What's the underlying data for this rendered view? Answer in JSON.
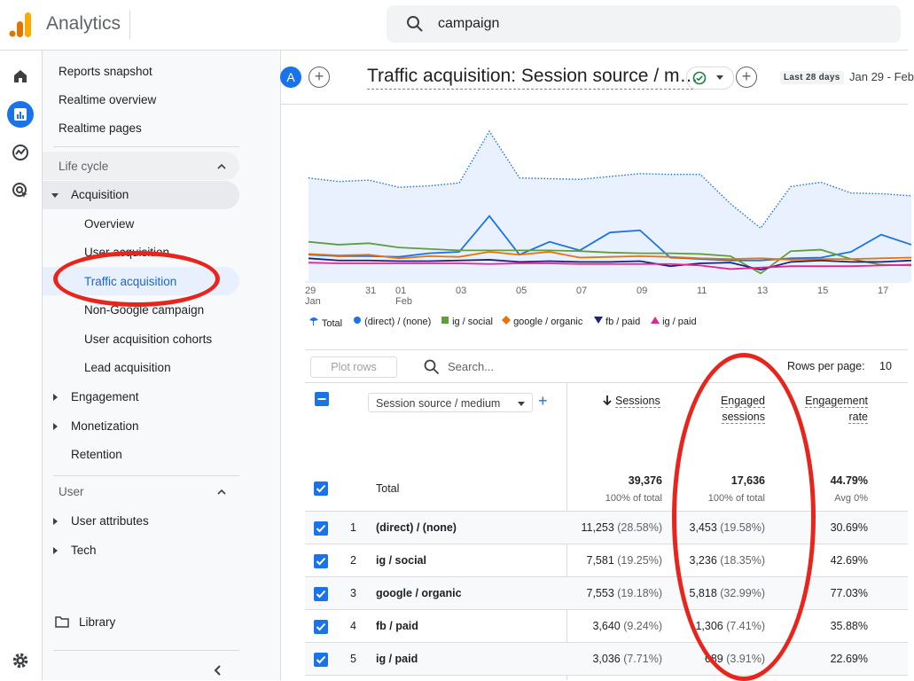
{
  "app": {
    "title": "Analytics"
  },
  "search": {
    "value": "campaign"
  },
  "rail": {
    "icons": [
      "home-icon",
      "reports-icon",
      "explore-icon",
      "advertising-icon",
      "settings-icon"
    ]
  },
  "nav": {
    "top_items": [
      "Reports snapshot",
      "Realtime overview",
      "Realtime pages"
    ],
    "lifecycle": {
      "label": "Life cycle",
      "acquisition": {
        "label": "Acquisition",
        "children": [
          "Overview",
          "User acquisition",
          "Traffic acquisition",
          "Non-Google campaign",
          "User acquisition cohorts",
          "Lead acquisition"
        ]
      },
      "engagement": "Engagement",
      "monetization": "Monetization",
      "retention": "Retention"
    },
    "user": {
      "label": "User",
      "attributes": "User attributes",
      "tech": "Tech"
    },
    "library": "Library"
  },
  "header": {
    "avatar_letter": "A",
    "report_title": "Traffic acquisition: Session source / m…",
    "date_chip": "Last 28 days",
    "date_range": "Jan 29 - Feb"
  },
  "chart_data": {
    "type": "line",
    "x": [
      "29 Jan",
      "30",
      "31",
      "01 Feb",
      "02",
      "03",
      "04",
      "05",
      "06",
      "07",
      "08",
      "09",
      "10",
      "11",
      "12",
      "13",
      "14",
      "15",
      "16",
      "17",
      "18"
    ],
    "x_tick_labels": [
      "29",
      "31",
      "01",
      "03",
      "05",
      "07",
      "09",
      "11",
      "13",
      "15",
      "17"
    ],
    "x_tick_sublabels": {
      "29": "Jan",
      "01": "Feb"
    },
    "series": [
      {
        "name": "Total",
        "values": [
          1450,
          1400,
          1420,
          1320,
          1340,
          1380,
          2100,
          1450,
          1440,
          1430,
          1470,
          1510,
          1500,
          1500,
          1090,
          750,
          1330,
          1390,
          1240,
          1230,
          1200
        ],
        "color": "#1a73e8",
        "style": "dotted-area"
      },
      {
        "name": "(direct) / (none)",
        "values": [
          380,
          360,
          360,
          350,
          400,
          420,
          920,
          380,
          560,
          440,
          690,
          720,
          340,
          320,
          300,
          300,
          330,
          340,
          420,
          660,
          520
        ],
        "color": "#1a73e8"
      },
      {
        "name": "ig / social",
        "values": [
          560,
          520,
          540,
          480,
          460,
          440,
          440,
          440,
          440,
          430,
          410,
          400,
          400,
          390,
          360,
          120,
          430,
          450,
          320,
          240,
          230
        ],
        "color": "#5f9e3a"
      },
      {
        "name": "google / organic",
        "values": [
          390,
          370,
          380,
          330,
          360,
          350,
          420,
          380,
          420,
          340,
          350,
          360,
          350,
          330,
          320,
          330,
          310,
          320,
          320,
          330,
          340
        ],
        "color": "#e8710a"
      },
      {
        "name": "fb / paid",
        "values": [
          330,
          300,
          300,
          290,
          290,
          300,
          310,
          280,
          290,
          280,
          280,
          290,
          220,
          260,
          270,
          170,
          280,
          300,
          280,
          280,
          300
        ],
        "color": "#1a237e"
      },
      {
        "name": "ig / paid",
        "values": [
          270,
          260,
          260,
          260,
          260,
          260,
          250,
          260,
          260,
          250,
          250,
          250,
          250,
          230,
          180,
          200,
          220,
          220,
          220,
          230,
          240
        ],
        "color": "#e52592"
      }
    ]
  },
  "table": {
    "plot_rows_label": "Plot rows",
    "search_placeholder": "Search...",
    "rows_per_page_label": "Rows per page:",
    "rows_per_page": "10",
    "dimension": "Session source / medium",
    "columns": {
      "sessions": "Sessions",
      "engaged_1": "Engaged",
      "engaged_2": "sessions",
      "engagement_1": "Engagement",
      "engagement_2": "rate"
    },
    "total": {
      "label": "Total",
      "sessions": "39,376",
      "sessions_sub": "100% of total",
      "engaged": "17,636",
      "engaged_sub": "100% of total",
      "rate": "44.79%",
      "rate_sub": "Avg 0%"
    },
    "rows": [
      {
        "n": "1",
        "label": "(direct) / (none)",
        "sessions": "11,253",
        "sessions_pct": "(28.58%)",
        "engaged": "3,453",
        "engaged_pct": "(19.58%)",
        "rate": "30.69%"
      },
      {
        "n": "2",
        "label": "ig / social",
        "sessions": "7,581",
        "sessions_pct": "(19.25%)",
        "engaged": "3,236",
        "engaged_pct": "(18.35%)",
        "rate": "42.69%"
      },
      {
        "n": "3",
        "label": "google / organic",
        "sessions": "7,553",
        "sessions_pct": "(19.18%)",
        "engaged": "5,818",
        "engaged_pct": "(32.99%)",
        "rate": "77.03%"
      },
      {
        "n": "4",
        "label": "fb / paid",
        "sessions": "3,640",
        "sessions_pct": "(9.24%)",
        "engaged": "1,306",
        "engaged_pct": "(7.41%)",
        "rate": "35.88%"
      },
      {
        "n": "5",
        "label": "ig / paid",
        "sessions": "3,036",
        "sessions_pct": "(7.71%)",
        "engaged": "689",
        "engaged_pct": "(3.91%)",
        "rate": "22.69%"
      }
    ]
  },
  "annotations": {
    "color": "#e8251c"
  }
}
